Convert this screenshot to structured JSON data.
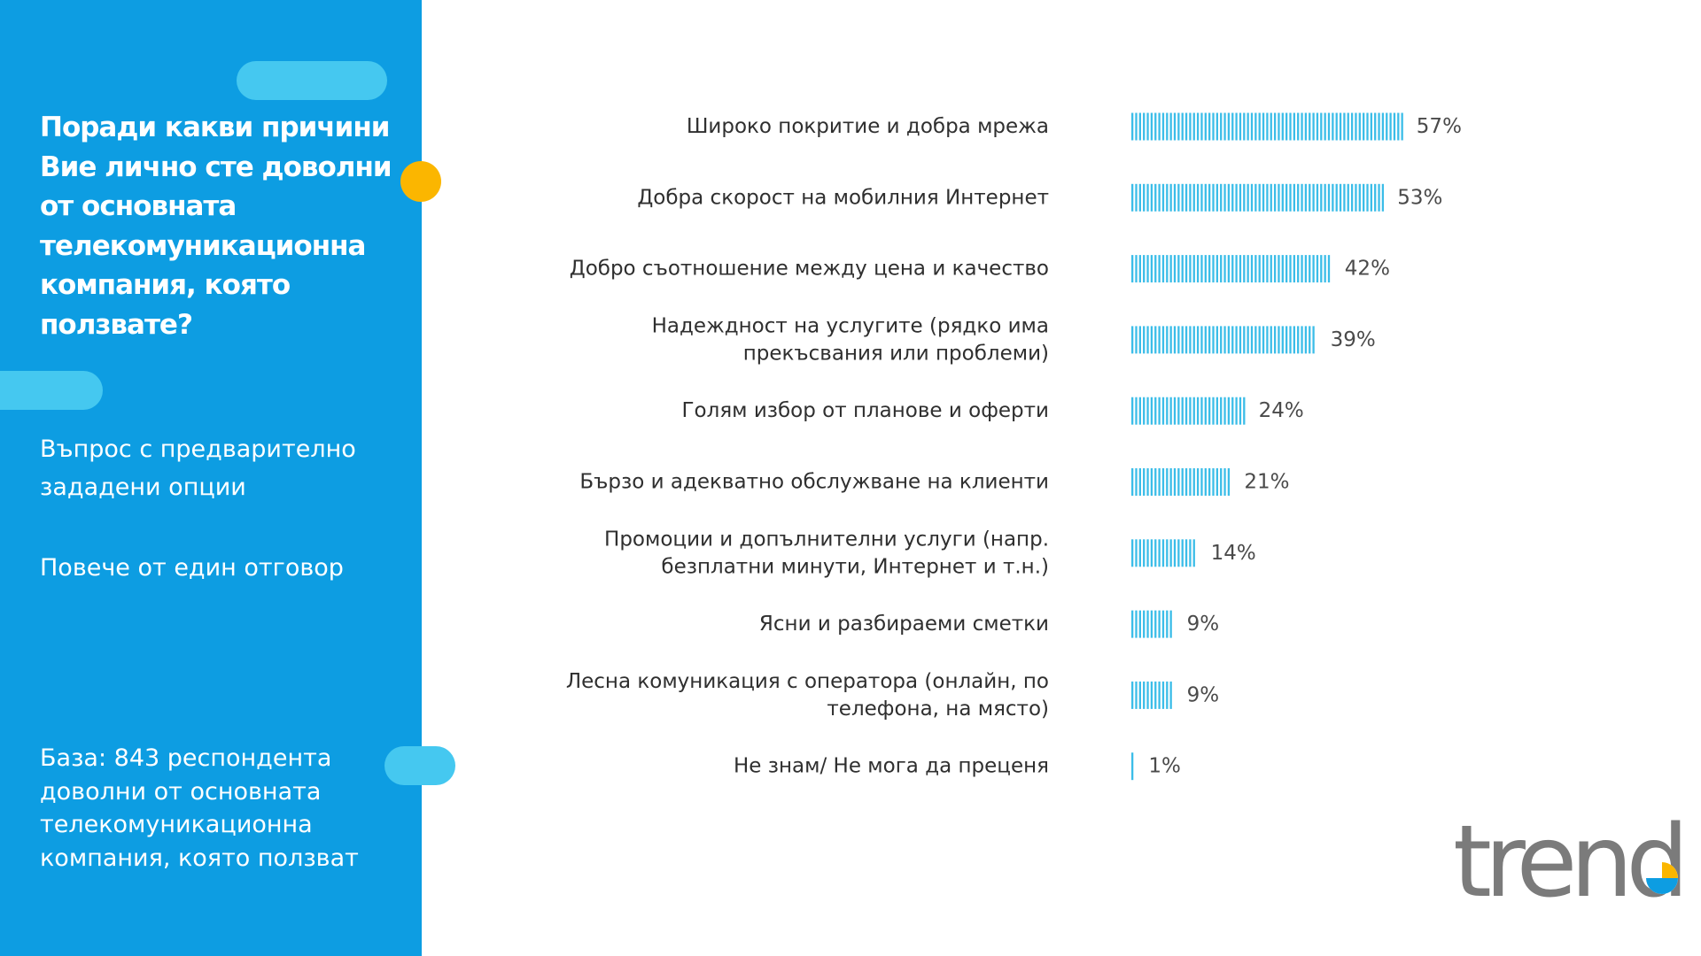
{
  "sidebar": {
    "question": "Поради какви причини Вие лично сте доволни от основната телекомуникационна компания, която ползвате?",
    "note_1": "Въпрос с предварително зададени опции",
    "note_2": "Повече от един отговор",
    "base": "База:  843 респондента доволни от основната телекомуникационна компания, която ползват"
  },
  "logo": {
    "text": "trend"
  },
  "colors": {
    "sidebar": "#0d9de2",
    "accent_pill": "#45c8f0",
    "accent_dot": "#fbb600",
    "bar": "#3bbde8",
    "text": "#2f2f2f"
  },
  "chart_data": {
    "type": "bar",
    "orientation": "horizontal",
    "bar_style": "striped",
    "categories": [
      [
        "Широко покритие и добра мрежа"
      ],
      [
        "Добра скорост на мобилния Интернет"
      ],
      [
        "Добро съотношение между цена и качество"
      ],
      [
        "Надеждност на услугите (рядко има",
        "прекъсвания или проблеми)"
      ],
      [
        "Голям избор от планове и оферти"
      ],
      [
        "Бързо и адекватно обслужване на клиенти"
      ],
      [
        "Промоции и допълнителни услуги (напр.",
        "безплатни минути, Интернет и т.н.)"
      ],
      [
        "Ясни и разбираеми сметки"
      ],
      [
        "Лесна комуникация с оператора (онлайн, по",
        "телефона, на място)"
      ],
      [
        "Не знам/ Не мога да преценя"
      ]
    ],
    "values": [
      57,
      53,
      42,
      39,
      24,
      21,
      14,
      9,
      9,
      1
    ],
    "data_labels": [
      "57%",
      "53%",
      "42%",
      "39%",
      "24%",
      "21%",
      "14%",
      "9%",
      "9%",
      "1%"
    ],
    "value_unit": "%",
    "title": "",
    "xlabel": "",
    "ylabel": "",
    "xlim": [
      0,
      100
    ],
    "grid": false,
    "legend": "none"
  }
}
